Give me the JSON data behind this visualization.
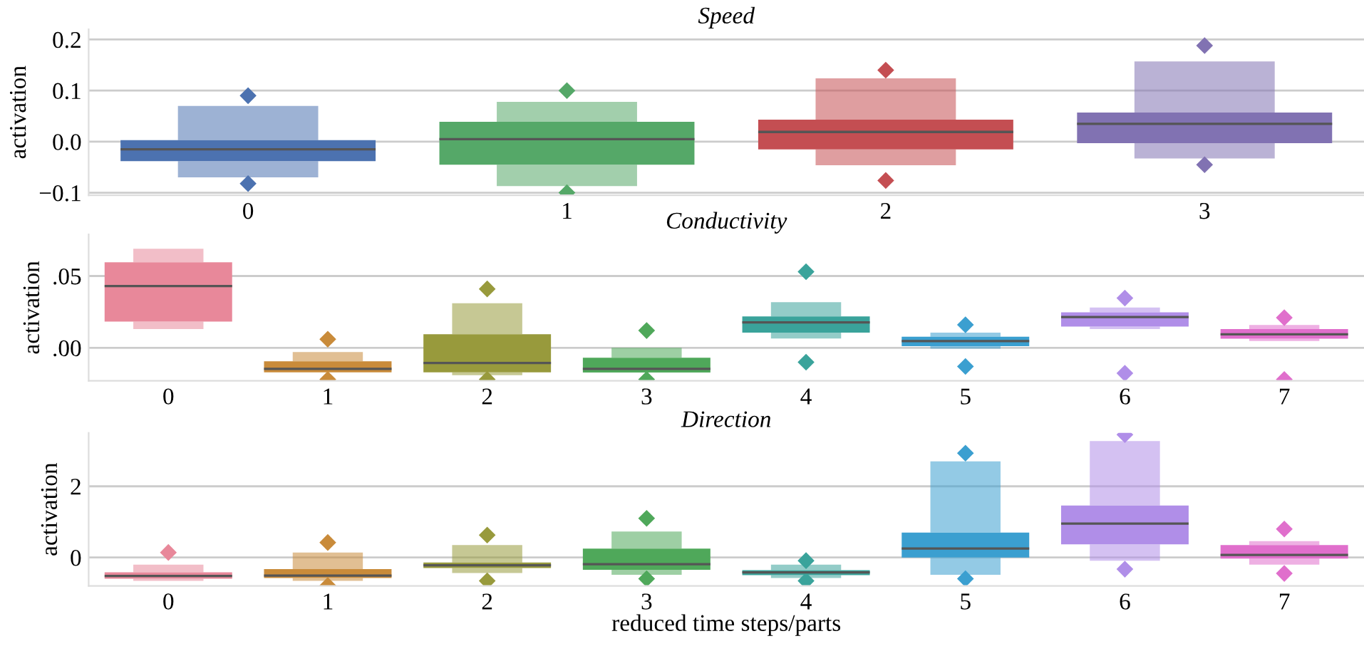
{
  "chart_data": [
    {
      "type": "box",
      "title": "Speed",
      "ylabel": "activation",
      "categories": [
        "0",
        "1",
        "2",
        "3"
      ],
      "colors": [
        "#4c72b0",
        "#55a868",
        "#c44e52",
        "#8172b2"
      ],
      "ylim": [
        -0.105,
        0.22
      ],
      "yticks": [
        {
          "value": -0.1,
          "label": "−0.1"
        },
        {
          "value": 0.0,
          "label": "0.0"
        },
        {
          "value": 0.1,
          "label": "0.1"
        },
        {
          "value": 0.2,
          "label": "0.2"
        }
      ],
      "grid": "y",
      "boxes": [
        {
          "low": -0.07,
          "q1": -0.038,
          "median": -0.015,
          "q3": 0.003,
          "high": 0.07,
          "outliers": [
            0.09,
            -0.082
          ]
        },
        {
          "low": -0.087,
          "q1": -0.045,
          "median": 0.005,
          "q3": 0.039,
          "high": 0.078,
          "outliers": [
            0.1,
            -0.1
          ]
        },
        {
          "low": -0.046,
          "q1": -0.015,
          "median": 0.019,
          "q3": 0.043,
          "high": 0.124,
          "outliers": [
            0.14,
            -0.076
          ]
        },
        {
          "low": -0.033,
          "q1": -0.003,
          "median": 0.035,
          "q3": 0.057,
          "high": 0.157,
          "outliers": [
            0.188,
            -0.045
          ]
        }
      ]
    },
    {
      "type": "box",
      "title": "Conductivity",
      "ylabel": "activation",
      "categories": [
        "0",
        "1",
        "2",
        "3",
        "4",
        "5",
        "6",
        "7"
      ],
      "colors": [
        "#e8889a",
        "#c98b3a",
        "#989a3c",
        "#4fa85a",
        "#3aa39b",
        "#3b9fd0",
        "#b08ee8",
        "#e06fcc"
      ],
      "ylim": [
        -0.023,
        0.079
      ],
      "yticks": [
        {
          "value": 0.0,
          "label": ".00"
        },
        {
          "value": 0.05,
          "label": ".05"
        }
      ],
      "grid": "y",
      "boxes": [
        {
          "low": 0.013,
          "q1": 0.0182,
          "median": 0.043,
          "q3": 0.0595,
          "high": 0.069
        },
        {
          "low": -0.0171,
          "q1": -0.0171,
          "median": -0.0147,
          "q3": -0.0094,
          "high": -0.003,
          "outliers": [
            0.006,
            -0.022
          ]
        },
        {
          "low": -0.019,
          "q1": -0.0171,
          "median": -0.0106,
          "q3": 0.0094,
          "high": 0.031,
          "outliers": [
            0.041,
            -0.022
          ]
        },
        {
          "low": -0.0172,
          "q1": -0.0172,
          "median": -0.0147,
          "q3": -0.0069,
          "high": 0.0,
          "outliers": [
            0.012,
            -0.022
          ]
        },
        {
          "low": 0.0065,
          "q1": 0.0106,
          "median": 0.0177,
          "q3": 0.0218,
          "high": 0.0318,
          "outliers": [
            0.053,
            -0.01
          ]
        },
        {
          "low": -0.0006,
          "q1": 0.0012,
          "median": 0.0047,
          "q3": 0.0077,
          "high": 0.0106,
          "outliers": [
            0.016,
            -0.013
          ]
        },
        {
          "low": 0.013,
          "q1": 0.0148,
          "median": 0.0214,
          "q3": 0.0247,
          "high": 0.028,
          "outliers": [
            0.0346,
            -0.0177
          ]
        },
        {
          "low": 0.0047,
          "q1": 0.0064,
          "median": 0.0094,
          "q3": 0.013,
          "high": 0.0159,
          "outliers": [
            0.021,
            -0.022
          ]
        }
      ]
    },
    {
      "type": "box",
      "title": "Direction",
      "ylabel": "activation",
      "xlabel": "reduced time steps/parts",
      "categories": [
        "0",
        "1",
        "2",
        "3",
        "4",
        "5",
        "6",
        "7"
      ],
      "colors": [
        "#e8889a",
        "#c98b3a",
        "#989a3c",
        "#4fa85a",
        "#3aa39b",
        "#3b9fd0",
        "#b08ee8",
        "#e06fcc"
      ],
      "ylim": [
        -0.8,
        3.5
      ],
      "yticks": [
        0,
        2
      ],
      "grid": "y",
      "boxes": [
        {
          "low": -0.66,
          "q1": -0.6,
          "median": -0.52,
          "q3": -0.42,
          "high": -0.2,
          "outliers": [
            0.14
          ]
        },
        {
          "low": -0.66,
          "q1": -0.58,
          "median": -0.51,
          "q3": -0.33,
          "high": 0.14,
          "outliers": [
            0.42,
            -0.79
          ]
        },
        {
          "low": -0.44,
          "q1": -0.3,
          "median": -0.22,
          "q3": -0.14,
          "high": 0.35,
          "outliers": [
            0.63,
            -0.66
          ]
        },
        {
          "low": -0.49,
          "q1": -0.35,
          "median": -0.19,
          "q3": 0.25,
          "high": 0.73,
          "outliers": [
            1.1,
            -0.6
          ]
        },
        {
          "low": -0.58,
          "q1": -0.5,
          "median": -0.42,
          "q3": -0.36,
          "high": -0.2,
          "outliers": [
            -0.09,
            -0.66
          ]
        },
        {
          "low": -0.49,
          "q1": 0.0,
          "median": 0.25,
          "q3": 0.7,
          "high": 2.7,
          "outliers": [
            2.93,
            -0.6
          ]
        },
        {
          "low": -0.09,
          "q1": 0.37,
          "median": 0.95,
          "q3": 1.46,
          "high": 3.27,
          "outliers": [
            3.45,
            -0.33
          ]
        },
        {
          "low": -0.2,
          "q1": -0.03,
          "median": 0.07,
          "q3": 0.35,
          "high": 0.46,
          "outliers": [
            0.8,
            -0.45
          ]
        }
      ]
    }
  ]
}
